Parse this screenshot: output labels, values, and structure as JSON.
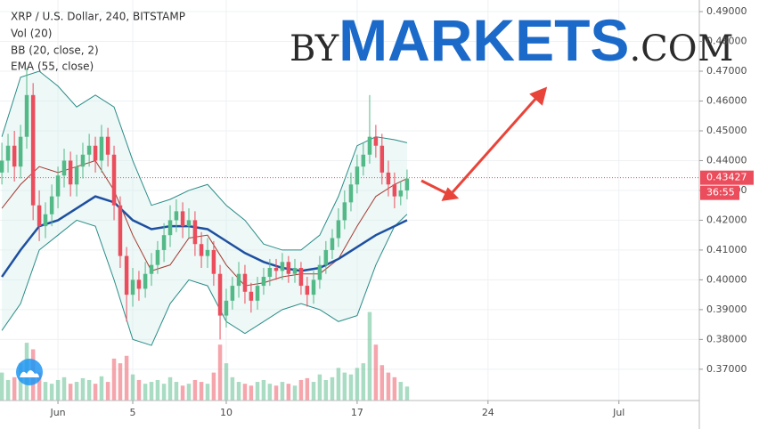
{
  "chart_data": {
    "type": "candlestick",
    "title": "XRP / U.S. Dollar, 240, BITSTAMP",
    "indicators": [
      "Vol (20)",
      "BB (20, close, 2)",
      "EMA (55, close)"
    ],
    "logo": {
      "by": "BY",
      "markets": "MARKETS",
      "com": ".COM"
    },
    "xlim": [
      -2.1,
      35.3
    ],
    "ylim": [
      0.3595,
      0.4939
    ],
    "xticks": [
      {
        "value": 1,
        "label": "Jun"
      },
      5,
      10,
      17,
      24,
      {
        "value": 31,
        "label": "Jul"
      }
    ],
    "yticks": [
      {
        "value": 0.37,
        "label": "0.37000"
      },
      {
        "value": 0.38,
        "label": "0.38000"
      },
      {
        "value": 0.39,
        "label": "0.39000"
      },
      {
        "value": 0.4,
        "label": "0.40000"
      },
      {
        "value": 0.41,
        "label": "0.41000"
      },
      {
        "value": 0.42,
        "label": "0.42000"
      },
      {
        "value": 0.43,
        "label": "0.43000"
      },
      {
        "value": 0.44,
        "label": "0.44000"
      },
      {
        "value": 0.45,
        "label": "0.45000"
      },
      {
        "value": 0.46,
        "label": "0.46000"
      },
      {
        "value": 0.47,
        "label": "0.47000"
      },
      {
        "value": 0.48,
        "label": "0.48000"
      },
      {
        "value": 0.49,
        "label": "0.49000"
      }
    ],
    "grid": true,
    "up_color": "#53b987",
    "down_color": "#eb4d5c",
    "last_price": 0.43427,
    "countdown": "36:55",
    "x": [
      -2,
      -1.67,
      -1.33,
      -1,
      -0.67,
      -0.33,
      0,
      0.33,
      0.67,
      1,
      1.33,
      1.67,
      2,
      2.33,
      2.67,
      3,
      3.33,
      3.67,
      4,
      4.33,
      4.67,
      5,
      5.33,
      5.67,
      6,
      6.33,
      6.67,
      7,
      7.33,
      7.67,
      8,
      8.33,
      8.67,
      9,
      9.33,
      9.67,
      10,
      10.33,
      10.67,
      11,
      11.33,
      11.67,
      12,
      12.33,
      12.67,
      13,
      13.33,
      13.67,
      14,
      14.33,
      14.67,
      15,
      15.33,
      15.67,
      16,
      16.33,
      16.67,
      17,
      17.33,
      17.67,
      18,
      18.33,
      18.67,
      19,
      19.33,
      19.67
    ],
    "open": [
      0.436,
      0.44,
      0.445,
      0.438,
      0.448,
      0.462,
      0.425,
      0.418,
      0.422,
      0.428,
      0.435,
      0.44,
      0.432,
      0.438,
      0.442,
      0.445,
      0.44,
      0.448,
      0.442,
      0.425,
      0.408,
      0.395,
      0.4,
      0.397,
      0.402,
      0.405,
      0.41,
      0.415,
      0.42,
      0.423,
      0.418,
      0.42,
      0.412,
      0.408,
      0.41,
      0.402,
      0.388,
      0.393,
      0.398,
      0.402,
      0.396,
      0.393,
      0.398,
      0.401,
      0.404,
      0.403,
      0.406,
      0.402,
      0.404,
      0.398,
      0.395,
      0.4,
      0.405,
      0.41,
      0.414,
      0.42,
      0.426,
      0.432,
      0.438,
      0.442,
      0.448,
      0.445,
      0.436,
      0.432,
      0.428,
      0.43
    ],
    "high": [
      0.446,
      0.449,
      0.45,
      0.452,
      0.471,
      0.466,
      0.43,
      0.426,
      0.432,
      0.438,
      0.444,
      0.443,
      0.442,
      0.446,
      0.449,
      0.448,
      0.452,
      0.451,
      0.445,
      0.428,
      0.411,
      0.404,
      0.403,
      0.406,
      0.409,
      0.413,
      0.419,
      0.425,
      0.427,
      0.426,
      0.424,
      0.423,
      0.416,
      0.414,
      0.413,
      0.405,
      0.397,
      0.401,
      0.406,
      0.405,
      0.399,
      0.401,
      0.404,
      0.407,
      0.407,
      0.409,
      0.408,
      0.407,
      0.406,
      0.401,
      0.403,
      0.408,
      0.413,
      0.417,
      0.424,
      0.43,
      0.436,
      0.442,
      0.446,
      0.462,
      0.452,
      0.449,
      0.44,
      0.436,
      0.433,
      0.437
    ],
    "low": [
      0.432,
      0.436,
      0.433,
      0.434,
      0.444,
      0.42,
      0.413,
      0.414,
      0.418,
      0.424,
      0.431,
      0.428,
      0.428,
      0.434,
      0.438,
      0.436,
      0.436,
      0.438,
      0.42,
      0.404,
      0.386,
      0.391,
      0.393,
      0.394,
      0.398,
      0.402,
      0.406,
      0.411,
      0.416,
      0.414,
      0.414,
      0.408,
      0.404,
      0.404,
      0.398,
      0.38,
      0.384,
      0.39,
      0.394,
      0.392,
      0.389,
      0.39,
      0.395,
      0.398,
      0.4,
      0.4,
      0.399,
      0.399,
      0.395,
      0.391,
      0.392,
      0.397,
      0.402,
      0.407,
      0.411,
      0.417,
      0.423,
      0.429,
      0.435,
      0.439,
      0.441,
      0.432,
      0.428,
      0.424,
      0.425,
      0.427
    ],
    "close": [
      0.44,
      0.445,
      0.438,
      0.448,
      0.462,
      0.425,
      0.418,
      0.422,
      0.428,
      0.435,
      0.44,
      0.432,
      0.438,
      0.442,
      0.445,
      0.44,
      0.448,
      0.442,
      0.425,
      0.408,
      0.395,
      0.4,
      0.397,
      0.402,
      0.405,
      0.41,
      0.415,
      0.42,
      0.423,
      0.418,
      0.42,
      0.412,
      0.408,
      0.41,
      0.402,
      0.388,
      0.393,
      0.398,
      0.402,
      0.396,
      0.393,
      0.398,
      0.401,
      0.404,
      0.403,
      0.406,
      0.402,
      0.404,
      0.398,
      0.395,
      0.4,
      0.405,
      0.41,
      0.414,
      0.42,
      0.426,
      0.432,
      0.438,
      0.442,
      0.448,
      0.445,
      0.436,
      0.432,
      0.428,
      0.43,
      0.434
    ],
    "volume": [
      30,
      22,
      25,
      40,
      62,
      55,
      30,
      20,
      18,
      22,
      25,
      18,
      20,
      24,
      22,
      18,
      26,
      20,
      45,
      40,
      48,
      28,
      22,
      18,
      20,
      22,
      18,
      25,
      20,
      16,
      18,
      22,
      20,
      18,
      30,
      60,
      40,
      25,
      20,
      18,
      16,
      20,
      22,
      18,
      16,
      20,
      18,
      16,
      22,
      24,
      20,
      28,
      22,
      25,
      35,
      30,
      28,
      35,
      40,
      95,
      60,
      38,
      30,
      25,
      20,
      15
    ],
    "volume_ylim": [
      0,
      430
    ],
    "indicator_x": [
      -2,
      -1,
      0,
      1,
      2,
      3,
      4,
      5,
      6,
      7,
      8,
      9,
      10,
      11,
      12,
      13,
      14,
      15,
      16,
      17,
      18,
      19,
      19.67
    ],
    "ema": [
      0.401,
      0.41,
      0.418,
      0.42,
      0.424,
      0.428,
      0.426,
      0.42,
      0.417,
      0.418,
      0.418,
      0.417,
      0.413,
      0.409,
      0.406,
      0.404,
      0.403,
      0.404,
      0.407,
      0.411,
      0.415,
      0.418,
      0.42
    ],
    "bb_upper": [
      0.448,
      0.468,
      0.47,
      0.465,
      0.458,
      0.462,
      0.458,
      0.44,
      0.425,
      0.427,
      0.43,
      0.432,
      0.425,
      0.42,
      0.412,
      0.41,
      0.41,
      0.415,
      0.428,
      0.445,
      0.448,
      0.447,
      0.446
    ],
    "bb_basis": [
      0.424,
      0.432,
      0.438,
      0.436,
      0.438,
      0.44,
      0.43,
      0.415,
      0.403,
      0.405,
      0.414,
      0.415,
      0.405,
      0.398,
      0.399,
      0.401,
      0.402,
      0.402,
      0.407,
      0.418,
      0.428,
      0.432,
      0.434
    ],
    "bb_lower": [
      0.383,
      0.392,
      0.41,
      0.415,
      0.42,
      0.418,
      0.4,
      0.38,
      0.378,
      0.392,
      0.4,
      0.398,
      0.386,
      0.382,
      0.386,
      0.39,
      0.392,
      0.39,
      0.386,
      0.388,
      0.405,
      0.418,
      0.422
    ]
  }
}
